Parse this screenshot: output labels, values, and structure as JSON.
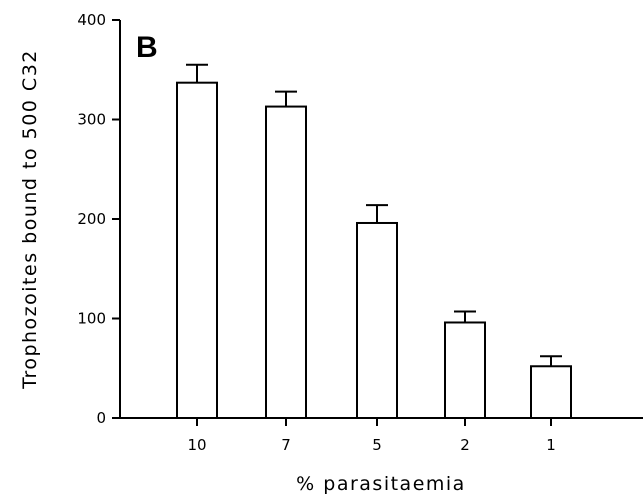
{
  "panel_label": "B",
  "chart_data": {
    "type": "bar",
    "categories": [
      "10",
      "7",
      "5",
      "2",
      "1"
    ],
    "values": [
      337,
      313,
      196,
      96,
      52
    ],
    "errors": [
      18,
      15,
      18,
      11,
      10
    ],
    "xlabel": "% parasitaemia",
    "ylabel": "Trophozoites bound to 500 C32",
    "ylim": [
      0,
      400
    ],
    "yticks": [
      0,
      100,
      200,
      300,
      400
    ],
    "grid": false
  }
}
